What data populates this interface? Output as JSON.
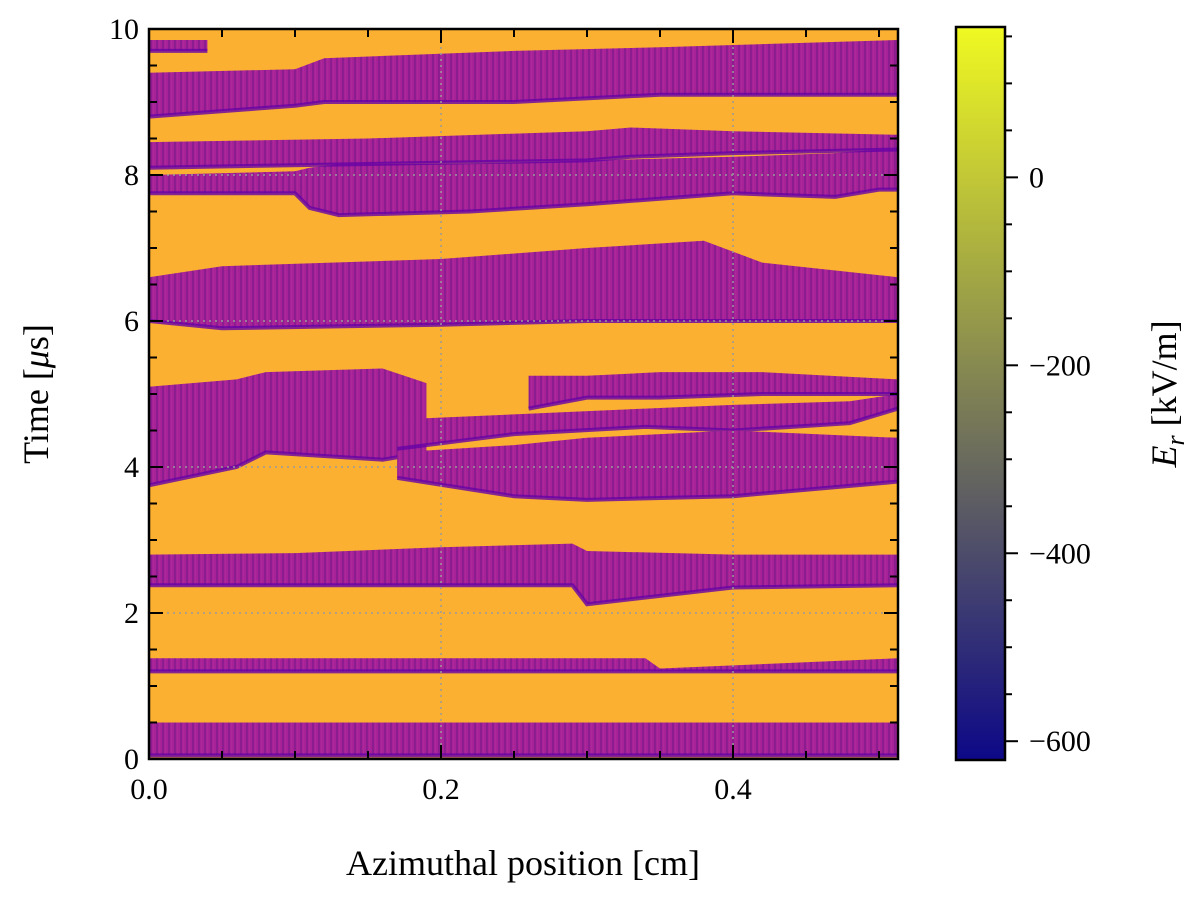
{
  "chart_data": {
    "type": "heatmap",
    "title": "",
    "xlabel": "Azimuthal position [cm]",
    "ylabel_parts": [
      "Time [",
      "μ",
      "s]"
    ],
    "colorbar_label_parts": [
      "E",
      "r",
      " [kV/m]"
    ],
    "xlim": [
      0.0,
      0.513
    ],
    "ylim": [
      0,
      10
    ],
    "x_ticks": [
      {
        "value": 0.0,
        "label": "0.0"
      },
      {
        "value": 0.2,
        "label": "0.2"
      },
      {
        "value": 0.4,
        "label": "0.4"
      }
    ],
    "y_ticks": [
      {
        "value": 0,
        "label": "0"
      },
      {
        "value": 2,
        "label": "2"
      },
      {
        "value": 4,
        "label": "4"
      },
      {
        "value": 6,
        "label": "6"
      },
      {
        "value": 8,
        "label": "8"
      },
      {
        "value": 10,
        "label": "10"
      }
    ],
    "grid": true,
    "colormap": "plasma",
    "colormap_stops": [
      "#0d0887",
      "#46039f",
      "#7201a8",
      "#9c179e",
      "#bd3786",
      "#d8576b",
      "#ed7953",
      "#fb9f3a",
      "#fdca26",
      "#f0f921"
    ],
    "clim": [
      -620,
      160
    ],
    "colorbar_ticks": [
      {
        "value": 0,
        "label": "0"
      },
      {
        "value": -200,
        "label": "−200"
      },
      {
        "value": -400,
        "label": "−400"
      },
      {
        "value": -600,
        "label": "−600"
      }
    ],
    "background_value": 20,
    "band_value": -330,
    "dark_edge_value": -470,
    "bands": [
      {
        "x": [
          0.0,
          0.513
        ],
        "y_lo": [
          0.05,
          0.05
        ],
        "y_hi": [
          0.5,
          0.5
        ]
      },
      {
        "x": [
          0.0,
          0.34,
          0.35,
          0.513
        ],
        "y_lo": [
          1.2,
          1.2,
          1.2,
          1.2
        ],
        "y_hi": [
          1.38,
          1.38,
          1.24,
          1.38
        ]
      },
      {
        "x": [
          0.0,
          0.1,
          0.2,
          0.29,
          0.3,
          0.4,
          0.513
        ],
        "y_lo": [
          2.38,
          2.38,
          2.38,
          2.38,
          2.12,
          2.35,
          2.38
        ],
        "y_hi": [
          2.8,
          2.82,
          2.9,
          2.95,
          2.85,
          2.8,
          2.8
        ]
      },
      {
        "x": [
          0.0,
          0.06,
          0.08,
          0.16,
          0.19
        ],
        "y_lo": [
          3.75,
          4.0,
          4.2,
          4.1,
          4.2
        ],
        "y_hi": [
          5.1,
          5.2,
          5.3,
          5.35,
          5.15
        ]
      },
      {
        "x": [
          0.17,
          0.25,
          0.34,
          0.4,
          0.48,
          0.513
        ],
        "y_lo": [
          4.25,
          4.45,
          4.55,
          4.5,
          4.6,
          4.8
        ],
        "y_hi": [
          4.65,
          4.72,
          4.8,
          4.85,
          4.9,
          5.0
        ]
      },
      {
        "x": [
          0.17,
          0.25,
          0.3,
          0.4,
          0.513
        ],
        "y_lo": [
          3.85,
          3.6,
          3.55,
          3.6,
          3.8
        ],
        "y_hi": [
          4.2,
          4.3,
          4.4,
          4.5,
          4.4
        ]
      },
      {
        "x": [
          0.26,
          0.3,
          0.35,
          0.42,
          0.513
        ],
        "y_lo": [
          4.8,
          4.95,
          4.95,
          5.0,
          5.0
        ],
        "y_hi": [
          5.25,
          5.25,
          5.3,
          5.3,
          5.2
        ]
      },
      {
        "x": [
          0.0,
          0.05,
          0.2,
          0.3,
          0.38,
          0.42,
          0.513
        ],
        "y_lo": [
          6.0,
          5.9,
          5.95,
          6.0,
          6.0,
          6.0,
          6.0
        ],
        "y_hi": [
          6.6,
          6.75,
          6.85,
          7.0,
          7.1,
          6.8,
          6.6
        ]
      },
      {
        "x": [
          0.0,
          0.1,
          0.11,
          0.13,
          0.22,
          0.3,
          0.4,
          0.47,
          0.5,
          0.513
        ],
        "y_lo": [
          7.75,
          7.75,
          7.55,
          7.45,
          7.5,
          7.6,
          7.75,
          7.7,
          7.8,
          7.8
        ],
        "y_hi": [
          8.0,
          8.05,
          8.1,
          8.15,
          8.15,
          8.2,
          8.25,
          8.3,
          8.35,
          8.35
        ]
      },
      {
        "x": [
          0.0,
          0.15,
          0.3,
          0.33,
          0.4,
          0.513
        ],
        "y_lo": [
          8.1,
          8.15,
          8.2,
          8.25,
          8.3,
          8.35
        ],
        "y_hi": [
          8.45,
          8.5,
          8.6,
          8.65,
          8.6,
          8.55
        ]
      },
      {
        "x": [
          0.0,
          0.1,
          0.12,
          0.25,
          0.35,
          0.513
        ],
        "y_lo": [
          8.8,
          8.95,
          9.0,
          9.0,
          9.1,
          9.1
        ],
        "y_hi": [
          9.4,
          9.45,
          9.6,
          9.7,
          9.75,
          9.85
        ]
      },
      {
        "x": [
          0.0,
          0.04
        ],
        "y_lo": [
          9.7,
          9.7
        ],
        "y_hi": [
          9.85,
          9.85
        ]
      }
    ]
  }
}
